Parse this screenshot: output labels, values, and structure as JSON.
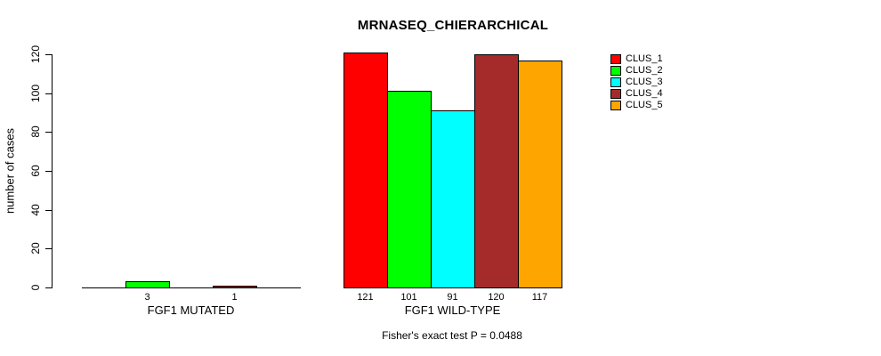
{
  "title": "MRNASEQ_CHIERARCHICAL",
  "ylabel": "number of cases",
  "annotation": "Fisher's exact test P = 0.0488",
  "colors": {
    "clus_1": "#FF0000",
    "clus_2": "#00FF00",
    "clus_3": "#00FFFF",
    "clus_4": "#A52A2A",
    "clus_5": "#FFA500",
    "axis": "#000000",
    "background": "#FFFFFF"
  },
  "legend": {
    "position": "right",
    "entries": [
      {
        "label": "CLUS_1",
        "color": "#FF0000"
      },
      {
        "label": "CLUS_2",
        "color": "#00FF00"
      },
      {
        "label": "CLUS_3",
        "color": "#00FFFF"
      },
      {
        "label": "CLUS_4",
        "color": "#A52A2A"
      },
      {
        "label": "CLUS_5",
        "color": "#FFA500"
      }
    ]
  },
  "chart_data": {
    "type": "bar",
    "title": "MRNASEQ_CHIERARCHICAL",
    "xlabel": "",
    "ylabel": "number of cases",
    "ylim": [
      0,
      120
    ],
    "yticks": [
      0,
      20,
      40,
      60,
      80,
      100,
      120
    ],
    "grid": false,
    "legend_position": "right",
    "categories": [
      "FGF1 MUTATED",
      "FGF1 WILD-TYPE"
    ],
    "series": [
      {
        "name": "CLUS_1",
        "color": "#FF0000",
        "values": [
          0,
          121
        ]
      },
      {
        "name": "CLUS_2",
        "color": "#00FF00",
        "values": [
          3,
          101
        ]
      },
      {
        "name": "CLUS_3",
        "color": "#00FFFF",
        "values": [
          0,
          91
        ]
      },
      {
        "name": "CLUS_4",
        "color": "#A52A2A",
        "values": [
          1,
          120
        ]
      },
      {
        "name": "CLUS_5",
        "color": "#FFA500",
        "values": [
          0,
          117
        ]
      }
    ],
    "bar_value_labels": {
      "shown": true,
      "hide_zero": true
    },
    "annotation": "Fisher's exact test P = 0.0488"
  }
}
